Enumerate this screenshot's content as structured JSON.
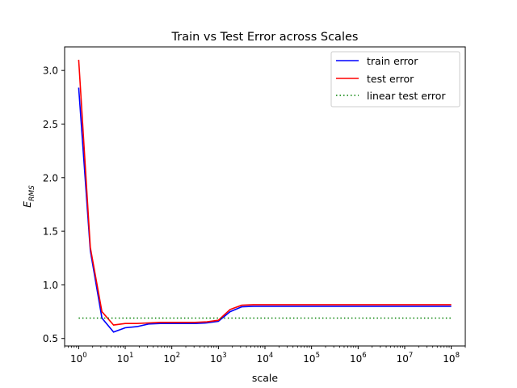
{
  "chart_data": {
    "type": "line",
    "title": "Train vs Test Error across Scales",
    "xlabel": "scale",
    "ylabel_main": "E",
    "ylabel_sub": "RMS",
    "xscale": "log",
    "xlim": [
      0.5,
      200000000
    ],
    "ylim": [
      0.43,
      3.22
    ],
    "xticks": [
      {
        "value": 1,
        "base": "10",
        "exp": "0"
      },
      {
        "value": 10,
        "base": "10",
        "exp": "1"
      },
      {
        "value": 100,
        "base": "10",
        "exp": "2"
      },
      {
        "value": 1000,
        "base": "10",
        "exp": "3"
      },
      {
        "value": 10000,
        "base": "10",
        "exp": "4"
      },
      {
        "value": 100000,
        "base": "10",
        "exp": "5"
      },
      {
        "value": 1000000,
        "base": "10",
        "exp": "6"
      },
      {
        "value": 10000000,
        "base": "10",
        "exp": "7"
      },
      {
        "value": 100000000,
        "base": "10",
        "exp": "8"
      }
    ],
    "yticks": [
      {
        "value": 0.5,
        "label": "0.5"
      },
      {
        "value": 1.0,
        "label": "1.0"
      },
      {
        "value": 1.5,
        "label": "1.5"
      },
      {
        "value": 2.0,
        "label": "2.0"
      },
      {
        "value": 2.5,
        "label": "2.5"
      },
      {
        "value": 3.0,
        "label": "3.0"
      }
    ],
    "grid": false,
    "legend_position": "top-right",
    "x": [
      1,
      1.78,
      3.16,
      5.62,
      10,
      17.8,
      31.6,
      56.2,
      100,
      178,
      316,
      562,
      1000,
      1780,
      3160,
      5620,
      10000,
      100000,
      1000000,
      10000000,
      100000000
    ],
    "series": [
      {
        "name": "train error",
        "color": "#0000ff",
        "style": "solid",
        "values": [
          2.84,
          1.32,
          0.69,
          0.56,
          0.6,
          0.61,
          0.635,
          0.64,
          0.64,
          0.64,
          0.64,
          0.645,
          0.66,
          0.75,
          0.795,
          0.8,
          0.8,
          0.8,
          0.8,
          0.8,
          0.8
        ]
      },
      {
        "name": "test error",
        "color": "#ff0000",
        "style": "solid",
        "values": [
          3.1,
          1.35,
          0.75,
          0.625,
          0.64,
          0.64,
          0.645,
          0.65,
          0.65,
          0.65,
          0.65,
          0.655,
          0.67,
          0.77,
          0.81,
          0.815,
          0.815,
          0.815,
          0.815,
          0.815,
          0.815
        ]
      },
      {
        "name": "linear test error",
        "color": "#008000",
        "style": "dotted",
        "x": [
          1,
          100000000
        ],
        "values": [
          0.69,
          0.69
        ]
      }
    ]
  }
}
